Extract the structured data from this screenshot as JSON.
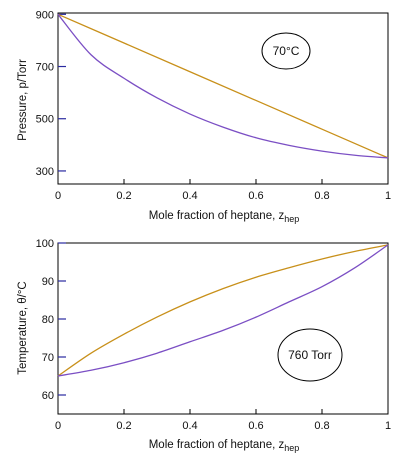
{
  "chart_data": [
    {
      "type": "line",
      "xlabel": "Mole fraction of heptane, z",
      "xlabel_sub": "hep",
      "ylabel": "Pressure, p/Torr",
      "annotation": "70°C",
      "xlim": [
        0,
        1
      ],
      "ylim": [
        250,
        905
      ],
      "x_ticks": [
        0,
        0.2,
        0.4,
        0.6,
        0.8,
        1
      ],
      "x_tick_labels": [
        "0",
        "0.2",
        "0.4",
        "0.6",
        "0.8",
        "1"
      ],
      "y_ticks": [
        300,
        500,
        700,
        900
      ],
      "y_tick_labels": [
        "300",
        "500",
        "700",
        "900"
      ],
      "grid": false,
      "colors": {
        "liquid": "#c8901a",
        "vapour": "#7b4fc4"
      },
      "series": [
        {
          "key": "liquid",
          "x": [
            0,
            0.2,
            0.4,
            0.6,
            0.8,
            1
          ],
          "y": [
            900,
            790,
            680,
            570,
            460,
            350
          ]
        },
        {
          "key": "vapour",
          "x": [
            0,
            0.1,
            0.2,
            0.3,
            0.4,
            0.5,
            0.6,
            0.7,
            0.8,
            0.9,
            1
          ],
          "y": [
            900,
            745,
            655,
            580,
            518,
            468,
            427,
            398,
            376,
            360,
            350
          ]
        }
      ]
    },
    {
      "type": "line",
      "xlabel": "Mole fraction of heptane, z",
      "xlabel_sub": "hep",
      "ylabel": "Temperature, θ/°C",
      "annotation": "760 Torr",
      "xlim": [
        0,
        1
      ],
      "ylim": [
        55,
        100
      ],
      "x_ticks": [
        0,
        0.2,
        0.4,
        0.6,
        0.8,
        1
      ],
      "x_tick_labels": [
        "0",
        "0.2",
        "0.4",
        "0.6",
        "0.8",
        "1"
      ],
      "y_ticks": [
        60,
        70,
        80,
        90,
        100
      ],
      "y_tick_labels": [
        "60",
        "70",
        "80",
        "90",
        "100"
      ],
      "grid": false,
      "colors": {
        "vapour": "#c8901a",
        "liquid": "#7b4fc4"
      },
      "series": [
        {
          "key": "vapour",
          "x": [
            0,
            0.1,
            0.2,
            0.3,
            0.4,
            0.5,
            0.6,
            0.7,
            0.8,
            0.9,
            1
          ],
          "y": [
            65,
            71,
            76,
            80.5,
            84.5,
            88,
            91,
            93.5,
            95.8,
            97.8,
            99.5
          ]
        },
        {
          "key": "liquid",
          "x": [
            0,
            0.1,
            0.2,
            0.3,
            0.4,
            0.5,
            0.6,
            0.7,
            0.8,
            0.9,
            1
          ],
          "y": [
            65,
            66.5,
            68.5,
            71,
            74,
            77,
            80.5,
            84.5,
            88.5,
            93.5,
            99.5
          ]
        }
      ]
    }
  ]
}
